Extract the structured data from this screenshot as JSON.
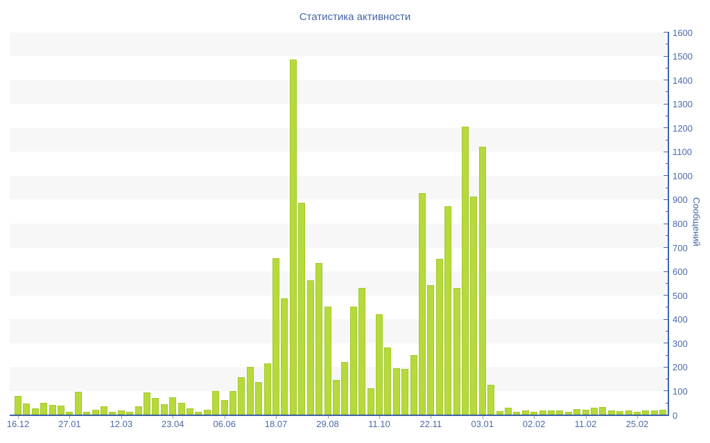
{
  "title": "Статистика активности",
  "colors": {
    "bar_fill": "#b6da3c",
    "bar_border": "#a4c82b",
    "axis_line": "#3e63a8",
    "tick_text": "#4a6aa9",
    "band": "#f7f7f7",
    "x_tick_mark": "#8e9bb3",
    "title_text": "#4565a8"
  },
  "chart_data": {
    "type": "bar",
    "title": "Статистика активности",
    "xlabel": "",
    "ylabel": "Сообщений",
    "ylim": [
      0,
      1600
    ],
    "y_major_step": 100,
    "y_minor_step": 50,
    "grid": "alternating horizontal gray bands (odd hundreds shaded: 100-200, 300-400, ... 1500-1600)",
    "legend": "none",
    "x_tick_labels": [
      "16.12",
      "27.01",
      "12.03",
      "23.04",
      "06.06",
      "18.07",
      "29.08",
      "11.10",
      "22.11",
      "03.01",
      "02.02",
      "11.02",
      "25.02"
    ],
    "x_tick_indices": [
      0,
      6,
      12,
      18,
      24,
      30,
      36,
      42,
      48,
      54,
      60,
      66,
      72
    ],
    "values": [
      78,
      45,
      26,
      48,
      40,
      37,
      13,
      95,
      11,
      19,
      34,
      11,
      18,
      12,
      34,
      92,
      68,
      42,
      71,
      48,
      27,
      12,
      20,
      98,
      61,
      97,
      155,
      200,
      135,
      215,
      655,
      485,
      1485,
      885,
      560,
      635,
      450,
      145,
      220,
      450,
      530,
      110,
      420,
      280,
      195,
      190,
      250,
      925,
      540,
      650,
      870,
      530,
      1205,
      910,
      1120,
      125,
      15,
      28,
      12,
      17,
      13,
      16,
      18,
      16,
      13,
      24,
      20,
      30,
      33,
      17,
      15,
      16,
      12,
      16,
      17,
      19
    ]
  }
}
